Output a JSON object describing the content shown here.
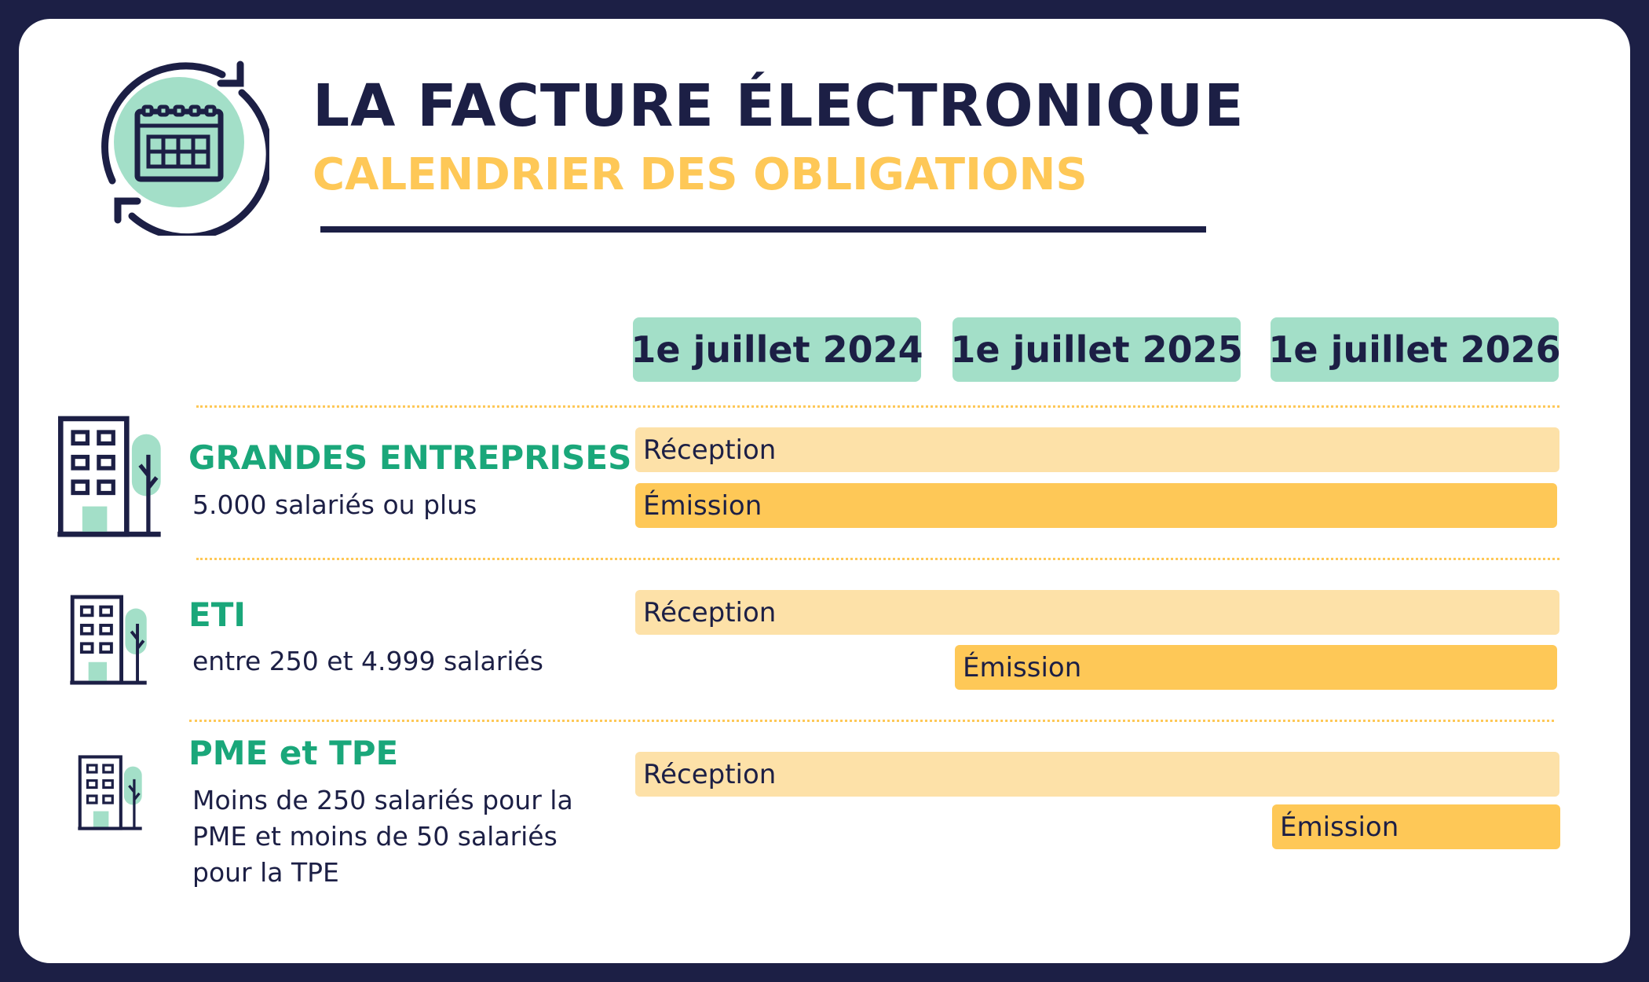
{
  "header": {
    "title": "LA FACTURE ÉLECTRONIQUE",
    "subtitle": "CALENDRIER DES OBLIGATIONS",
    "icon": "calendar-refresh-icon"
  },
  "colors": {
    "navy": "#1c1f45",
    "green": "#1aa77a",
    "mint": "#a3dfc8",
    "yellow": "#fec857",
    "light_yellow": "#fde1a8"
  },
  "dates": [
    "1e juillet 2024",
    "1e juillet 2025",
    "1e juillet 2026"
  ],
  "rows": [
    {
      "name": "GRANDES ENTREPRISES",
      "description": "5.000 salariés ou plus",
      "icon": "large-building-icon",
      "reception": {
        "label": "Réception",
        "start": "1e juillet 2024"
      },
      "emission": {
        "label": "Émission",
        "start": "1e juillet 2024"
      }
    },
    {
      "name": "ETI",
      "description": "entre 250 et 4.999 salariés",
      "icon": "medium-building-icon",
      "reception": {
        "label": "Réception",
        "start": "1e juillet 2024"
      },
      "emission": {
        "label": "Émission",
        "start": "1e juillet 2025"
      }
    },
    {
      "name": "PME et TPE",
      "description": "Moins de 250 salariés pour la PME et moins de 50 salariés pour la TPE",
      "icon": "small-building-icon",
      "reception": {
        "label": "Réception",
        "start": "1e juillet 2024"
      },
      "emission": {
        "label": "Émission",
        "start": "1e juillet 2026"
      }
    }
  ]
}
